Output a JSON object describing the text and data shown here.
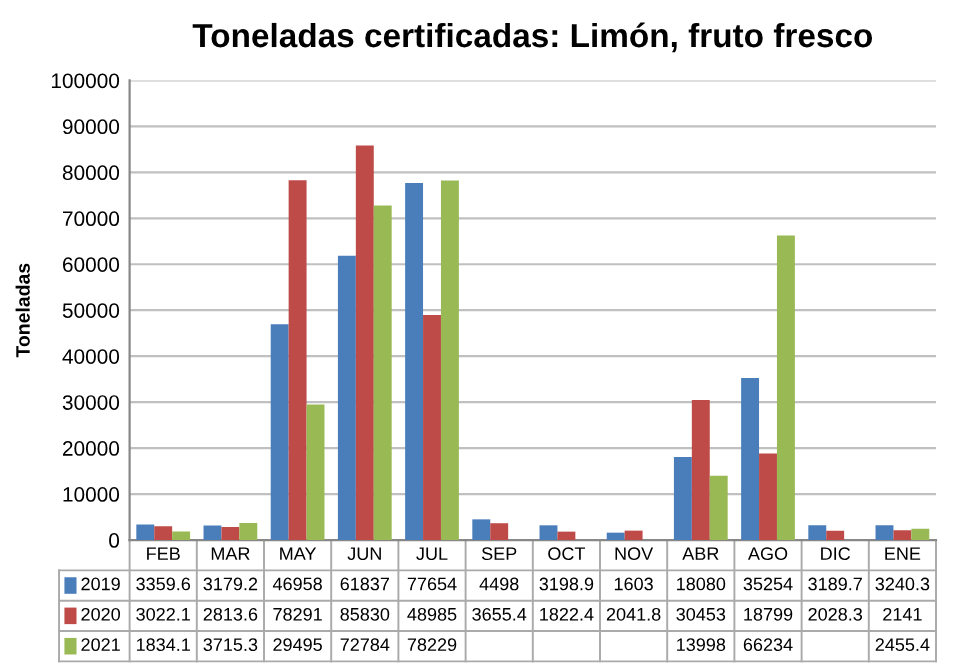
{
  "chart_data": {
    "type": "bar",
    "title": "Toneladas certificadas: Limón, fruto fresco",
    "ylabel": "Toneladas",
    "categories": [
      "FEB",
      "MAR",
      "MAY",
      "JUN",
      "JUL",
      "SEP",
      "OCT",
      "NOV",
      "ABR",
      "AGO",
      "DIC",
      "ENE"
    ],
    "series": [
      {
        "name": "2019",
        "color": "#4a7ebb",
        "values": [
          3359.6,
          3179.2,
          46958,
          61837,
          77654,
          4498,
          3198.9,
          1603,
          18080,
          35254,
          3189.7,
          3240.3
        ]
      },
      {
        "name": "2020",
        "color": "#be4b48",
        "values": [
          3022.1,
          2813.6,
          78291,
          85830,
          48985,
          3655.4,
          1822.4,
          2041.8,
          30453,
          18799,
          2028.3,
          2141
        ]
      },
      {
        "name": "2021",
        "color": "#98b954",
        "values": [
          1834.1,
          3715.3,
          29495,
          72784,
          78229,
          null,
          null,
          null,
          13998,
          66234,
          null,
          2455.4
        ]
      }
    ],
    "ylim": [
      0,
      100000
    ],
    "yticks": [
      0,
      10000,
      20000,
      30000,
      40000,
      50000,
      60000,
      70000,
      80000,
      90000,
      100000
    ],
    "grid": "y",
    "data_labels": true,
    "legend": "bottom"
  }
}
